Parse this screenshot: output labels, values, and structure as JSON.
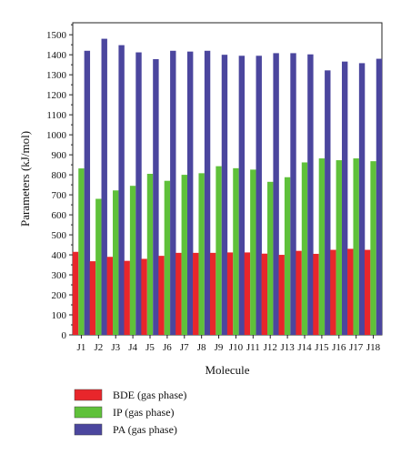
{
  "chart_data": {
    "type": "bar",
    "categories": [
      "J1",
      "J2",
      "J3",
      "J4",
      "J5",
      "J6",
      "J7",
      "J8",
      "J9",
      "J10",
      "J11",
      "J12",
      "J13",
      "J14",
      "J15",
      "J16",
      "J17",
      "J18"
    ],
    "series": [
      {
        "name": "BDE (gas phase)",
        "color": "#e8262b",
        "values": [
          415,
          368,
          390,
          370,
          380,
          395,
          410,
          410,
          410,
          412,
          412,
          406,
          400,
          420,
          405,
          425,
          430,
          425
        ]
      },
      {
        "name": "IP (gas phase)",
        "color": "#5fc13a",
        "values": [
          832,
          680,
          722,
          745,
          805,
          770,
          800,
          808,
          843,
          833,
          826,
          765,
          788,
          862,
          882,
          873,
          882,
          868
        ]
      },
      {
        "name": "PA (gas phase)",
        "color": "#4b469e",
        "values": [
          1420,
          1480,
          1448,
          1412,
          1378,
          1420,
          1416,
          1420,
          1400,
          1395,
          1395,
          1408,
          1408,
          1402,
          1322,
          1366,
          1358,
          1380
        ]
      }
    ],
    "xlabel": "Molecule",
    "ylabel": "Parameters (kJ/mol)",
    "ylim": [
      0,
      1560
    ],
    "yticks": [
      0,
      100,
      200,
      300,
      400,
      500,
      600,
      700,
      800,
      900,
      1000,
      1100,
      1200,
      1300,
      1400,
      1500
    ],
    "grid": false,
    "legend_position": "bottom-left"
  }
}
